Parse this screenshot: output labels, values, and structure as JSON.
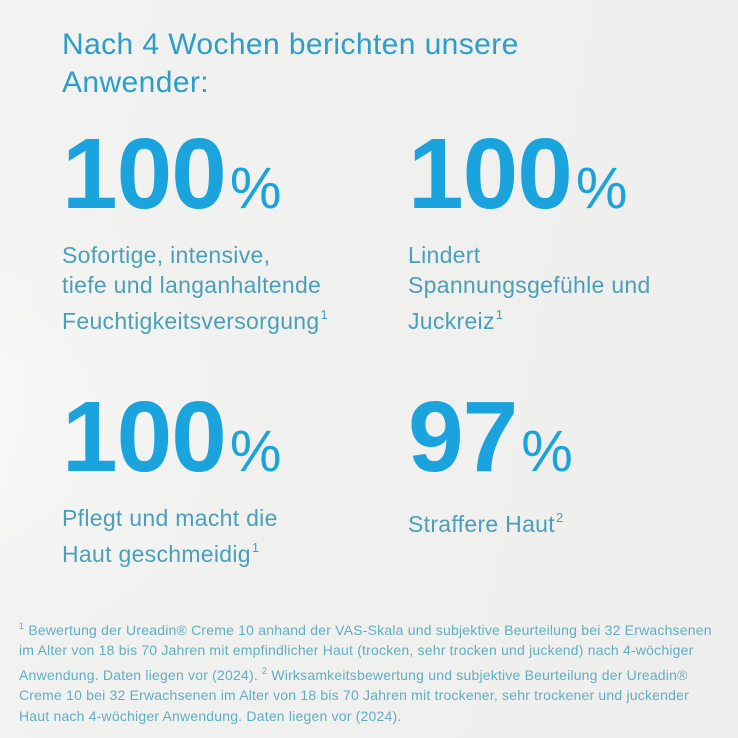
{
  "colors": {
    "background": "#f0f0ee",
    "title": "#2b9ec9",
    "stat_value": "#1aa3dc",
    "description": "#4aa0ba",
    "footnote": "#5faec5"
  },
  "title": "Nach 4 Wochen berichten unsere Anwender:",
  "stats": [
    {
      "value": "100",
      "unit": "%",
      "lines": [
        "Sofortige, intensive,",
        "tiefe und langanhaltende",
        "Feuchtigkeitsversorgung"
      ],
      "sup": "1"
    },
    {
      "value": "100",
      "unit": "%",
      "lines": [
        "Lindert",
        "Spannungsgefühle und",
        "Juckreiz"
      ],
      "sup": "1"
    },
    {
      "value": "100",
      "unit": "%",
      "lines": [
        "Pflegt und macht die",
        "Haut geschmeidig"
      ],
      "sup": "1"
    },
    {
      "value": "97",
      "unit": "%",
      "lines": [
        "Straffere Haut"
      ],
      "sup": "2"
    }
  ],
  "footnotes": [
    {
      "ref": "1",
      "text": "Bewertung der Ureadin® Creme 10 anhand der VAS-Skala und subjektive Beurteilung bei 32 Erwachsenen im Alter von 18 bis 70 Jahren mit empfindlicher Haut (trocken, sehr trocken und juckend) nach 4-wöchiger Anwendung. Daten liegen vor (2024)."
    },
    {
      "ref": "2",
      "text": "Wirksamkeitsbewertung und subjektive Beurteilung der Ureadin® Creme 10 bei 32 Erwachsenen im Alter von 18 bis 70 Jahren mit trockener, sehr trockener und juckender Haut nach 4-wöchiger Anwendung. Daten liegen vor (2024)."
    }
  ]
}
